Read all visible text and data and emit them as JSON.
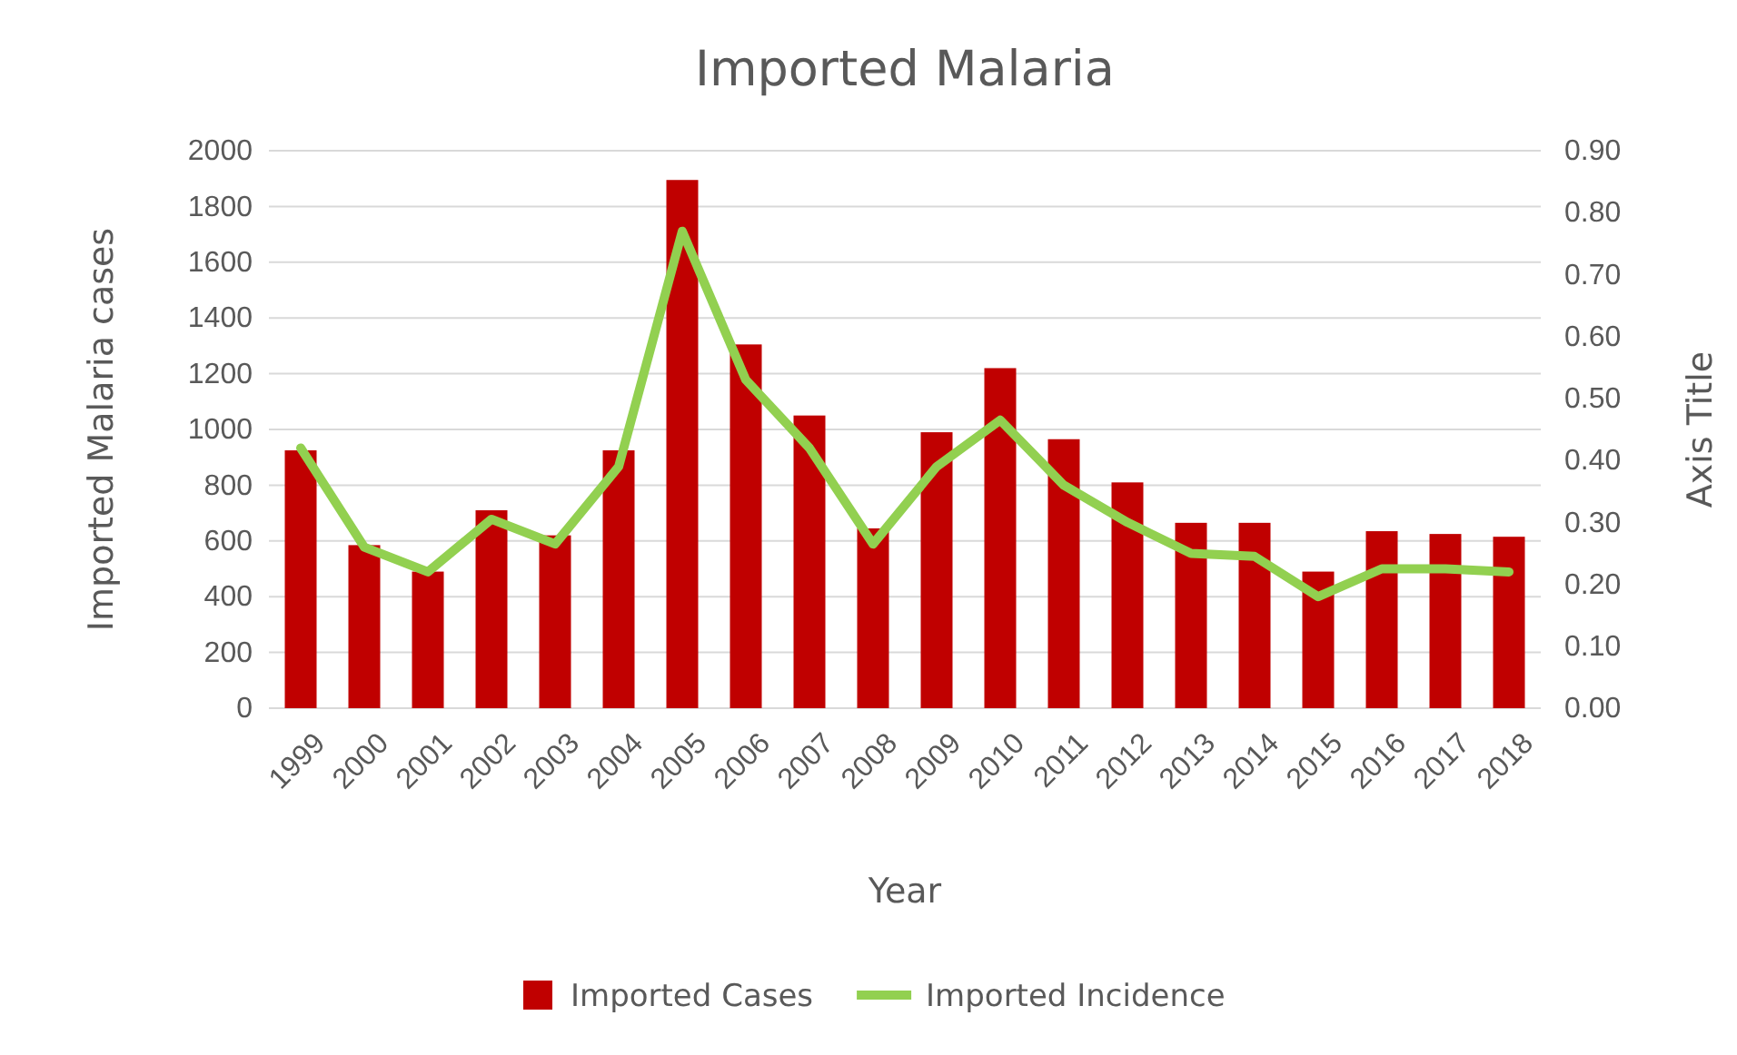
{
  "chart_data": {
    "type": "bar",
    "title": "Imported Malaria",
    "xlabel": "Year",
    "ylabel": "Imported Malaria cases",
    "y2label": "Axis Title",
    "categories": [
      "1999",
      "2000",
      "2001",
      "2002",
      "2003",
      "2004",
      "2005",
      "2006",
      "2007",
      "2008",
      "2009",
      "2010",
      "2011",
      "2012",
      "2013",
      "2014",
      "2015",
      "2016",
      "2017",
      "2018"
    ],
    "series": [
      {
        "name": "Imported Cases",
        "color": "#c00000",
        "values": [
          925,
          585,
          490,
          710,
          620,
          925,
          1895,
          1305,
          1050,
          645,
          990,
          1220,
          965,
          810,
          665,
          665,
          490,
          635,
          625,
          615
        ]
      },
      {
        "name": "Imported Incidence",
        "type": "line",
        "axis": "y2",
        "color": "#92d050",
        "values": [
          0.42,
          0.26,
          0.22,
          0.305,
          0.265,
          0.39,
          0.77,
          0.53,
          0.42,
          0.265,
          0.39,
          0.465,
          0.36,
          0.3,
          0.25,
          0.245,
          0.18,
          0.225,
          0.225,
          0.22
        ]
      }
    ],
    "ylim": [
      0,
      2000
    ],
    "yticks": [
      0,
      200,
      400,
      600,
      800,
      1000,
      1200,
      1400,
      1600,
      1800,
      2000
    ],
    "y2lim": [
      0,
      0.9
    ],
    "y2ticks": [
      {
        "value": 0,
        "label": "0.00"
      },
      {
        "value": 0.1,
        "label": "0.10"
      },
      {
        "value": 0.2,
        "label": "0.20"
      },
      {
        "value": 0.3,
        "label": "0.30"
      },
      {
        "value": 0.4,
        "label": "0.40"
      },
      {
        "value": 0.5,
        "label": "0.50"
      },
      {
        "value": 0.6,
        "label": "0.60"
      },
      {
        "value": 0.7,
        "label": "0.70"
      },
      {
        "value": 0.8,
        "label": "0.80"
      },
      {
        "value": 0.9,
        "label": "0.90"
      }
    ],
    "grid": "y",
    "legend": "bottom",
    "marker": "none",
    "line_style": "solid"
  }
}
